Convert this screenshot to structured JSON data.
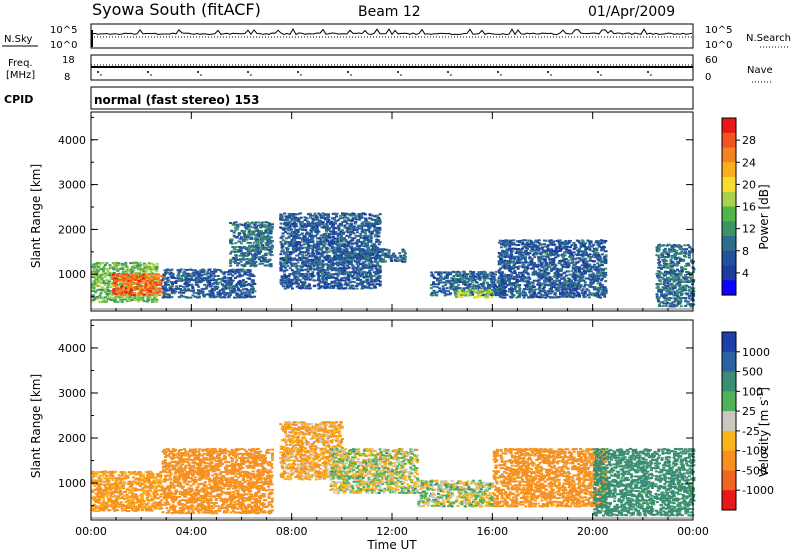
{
  "header": {
    "station": "Syowa South (fitACF)",
    "beam": "Beam 12",
    "date": "01/Apr/2009"
  },
  "panels": {
    "nsky": {
      "left_label": "N.Sky",
      "left_ticks": [
        "10^5",
        "10^0"
      ],
      "right_label": "N.Search",
      "right_ticks": [
        "10^5",
        "10^0"
      ]
    },
    "freq": {
      "left_label_1": "Freq.",
      "left_label_2": "[MHz]",
      "left_ticks": [
        "18",
        "8"
      ],
      "right_label": "Nave",
      "right_ticks": [
        "60",
        "0"
      ]
    },
    "cpid": {
      "label": "CPID",
      "text": "normal (fast stereo) 153"
    }
  },
  "colorbars": {
    "power": {
      "title": "Power [dB]",
      "ticks": [
        "28",
        "24",
        "20",
        "16",
        "12",
        "8",
        "4"
      ],
      "colors": [
        "#e8171a",
        "#f15321",
        "#f4821f",
        "#f8ae1d",
        "#f8dc2e",
        "#a8d24b",
        "#4fb748",
        "#3a9463",
        "#2d6e8c",
        "#22509e",
        "#1d3c9f",
        "#0c00ff"
      ]
    },
    "velocity": {
      "title": "Velocity [m s",
      "title_sup": "-1",
      "title_end": "]",
      "ticks": [
        "1000",
        "500",
        "100",
        "25",
        "-25",
        "-100",
        "-500",
        "-1000"
      ],
      "colors": [
        "#1f3fa8",
        "#2c62a2",
        "#3a8d72",
        "#4fb25a",
        "#c8c8c0",
        "#f8b41b",
        "#f6901f",
        "#f06520",
        "#e8171a"
      ]
    }
  },
  "chart_data": [
    {
      "type": "heatmap",
      "title": "",
      "xlabel": "Time UT",
      "ylabel": "Slant Range [km]",
      "x_ticks": [
        "00:00",
        "04:00",
        "08:00",
        "12:00",
        "16:00",
        "20:00",
        "00:00"
      ],
      "y_ticks": [
        1000,
        2000,
        3000,
        4000
      ],
      "xlim": [
        0,
        24
      ],
      "ylim": [
        180,
        4620
      ],
      "parameter": "Power [dB]",
      "regions": [
        {
          "t0": 0.0,
          "t1": 2.6,
          "r0": 400,
          "r1": 1300,
          "value": 14
        },
        {
          "t0": 0.8,
          "t1": 2.9,
          "r0": 550,
          "r1": 1050,
          "value": 26
        },
        {
          "t0": 2.8,
          "t1": 6.5,
          "r0": 500,
          "r1": 1150,
          "value": 6
        },
        {
          "t0": 5.5,
          "t1": 7.2,
          "r0": 1200,
          "r1": 2200,
          "value": 8
        },
        {
          "t0": 7.5,
          "t1": 11.5,
          "r0": 700,
          "r1": 2400,
          "value": 6
        },
        {
          "t0": 9.8,
          "t1": 12.5,
          "r0": 1300,
          "r1": 1600,
          "value": 7
        },
        {
          "t0": 13.5,
          "t1": 16.5,
          "r0": 550,
          "r1": 1100,
          "value": 7
        },
        {
          "t0": 14.5,
          "t1": 16.0,
          "r0": 500,
          "r1": 700,
          "value": 16
        },
        {
          "t0": 16.2,
          "t1": 20.5,
          "r0": 500,
          "r1": 1800,
          "value": 6
        },
        {
          "t0": 22.5,
          "t1": 24.0,
          "r0": 300,
          "r1": 1700,
          "value": 8
        }
      ]
    },
    {
      "type": "heatmap",
      "title": "",
      "xlabel": "Time UT",
      "ylabel": "Slant Range [km]",
      "x_ticks": [
        "00:00",
        "04:00",
        "08:00",
        "12:00",
        "16:00",
        "20:00",
        "00:00"
      ],
      "y_ticks": [
        1000,
        2000,
        3000,
        4000
      ],
      "xlim": [
        0,
        24
      ],
      "ylim": [
        180,
        4620
      ],
      "parameter": "Velocity [m s-1]",
      "regions": [
        {
          "t0": 0.0,
          "t1": 2.8,
          "r0": 400,
          "r1": 1300,
          "value": -150
        },
        {
          "t0": 2.8,
          "t1": 7.2,
          "r0": 350,
          "r1": 1800,
          "value": -300
        },
        {
          "t0": 7.5,
          "t1": 10.0,
          "r0": 1100,
          "r1": 2400,
          "value": -100
        },
        {
          "t0": 9.5,
          "t1": 13.0,
          "r0": 800,
          "r1": 1800,
          "value": 0
        },
        {
          "t0": 13.0,
          "t1": 16.0,
          "r0": 500,
          "r1": 1100,
          "value": 10
        },
        {
          "t0": 16.0,
          "t1": 20.5,
          "r0": 500,
          "r1": 1800,
          "value": -200
        },
        {
          "t0": 20.0,
          "t1": 24.0,
          "r0": 300,
          "r1": 1800,
          "value": 200
        }
      ]
    }
  ]
}
